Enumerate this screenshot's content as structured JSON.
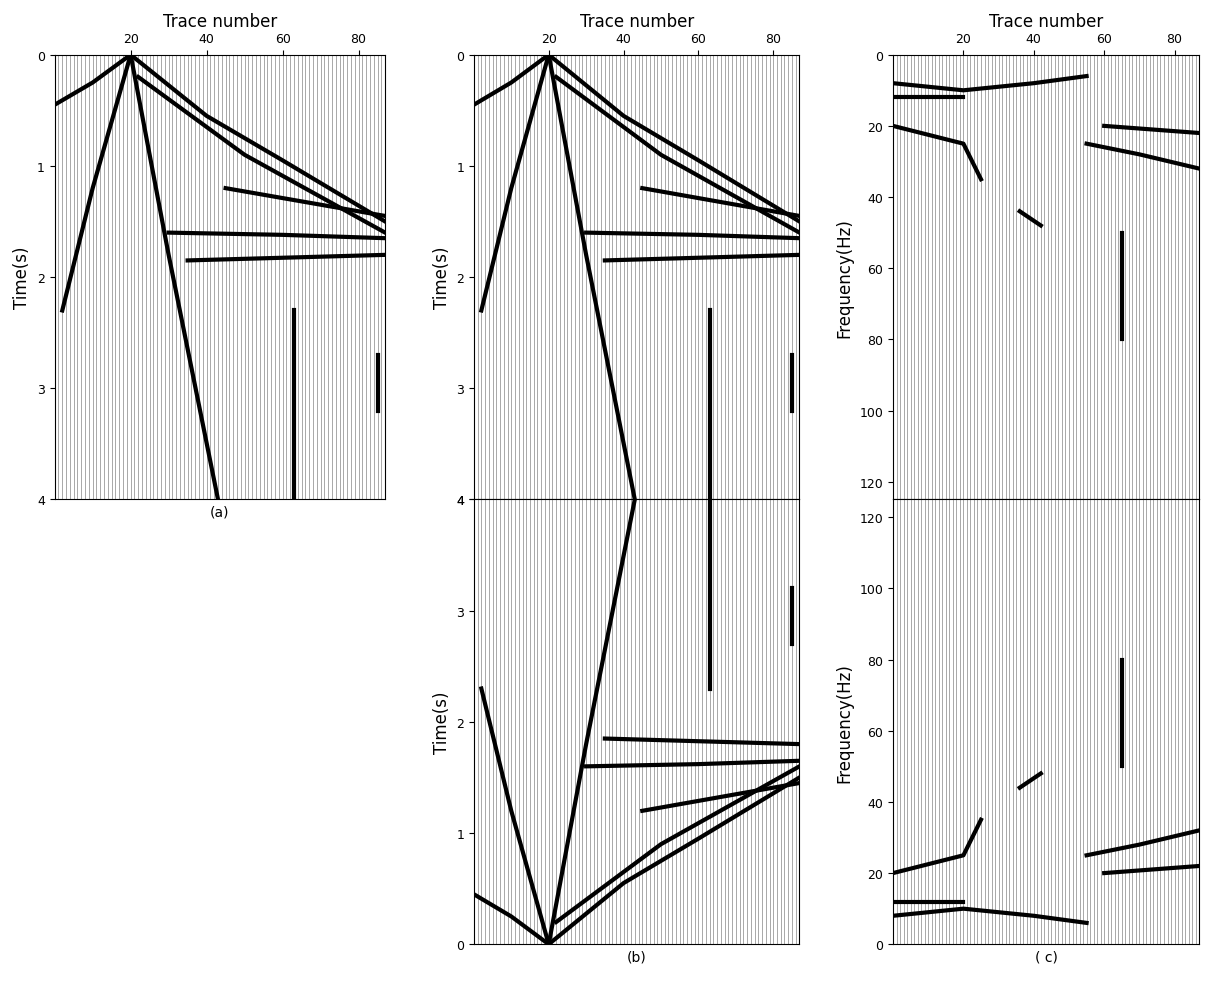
{
  "chart_data": [
    {
      "type": "line",
      "title": "(a)",
      "xlabel": "Trace number",
      "ylabel": "Time(s)",
      "xlim": [
        0,
        87
      ],
      "xticks": [
        20,
        40,
        60,
        80
      ],
      "ylim": [
        4,
        0
      ],
      "yticks": [
        0,
        1,
        2,
        3,
        4
      ],
      "traces": 87,
      "series": [
        {
          "x": [
            20,
            10,
            0
          ],
          "y": [
            0,
            0.25,
            0.45
          ],
          "color": "#000000"
        },
        {
          "x": [
            20,
            40,
            60,
            87
          ],
          "y": [
            0,
            0.55,
            0.95,
            1.5
          ],
          "color": "#000000"
        },
        {
          "x": [
            22,
            50,
            87
          ],
          "y": [
            0.2,
            0.9,
            1.6
          ],
          "color": "#000000"
        },
        {
          "x": [
            20,
            30,
            43
          ],
          "y": [
            0,
            1.8,
            4
          ],
          "color": "#000000"
        },
        {
          "x": [
            20,
            10,
            2
          ],
          "y": [
            0,
            1.2,
            2.3
          ],
          "color": "#000000"
        },
        {
          "x": [
            30,
            60,
            87
          ],
          "y": [
            1.6,
            1.62,
            1.65
          ],
          "color": "#000000"
        },
        {
          "x": [
            35,
            87
          ],
          "y": [
            1.85,
            1.8
          ],
          "color": "#000000"
        },
        {
          "x": [
            45,
            87
          ],
          "y": [
            1.2,
            1.45
          ],
          "color": "#000000"
        },
        {
          "x": [
            63,
            63
          ],
          "y": [
            2.3,
            4
          ],
          "color": "#000000"
        },
        {
          "x": [
            85,
            85
          ],
          "y": [
            2.7,
            3.2
          ],
          "color": "#000000"
        }
      ]
    },
    {
      "type": "line",
      "xlabel": "Trace number",
      "ylabel": "Time(s)",
      "xlim": [
        0,
        87
      ],
      "xticks": [
        20,
        40,
        60,
        80
      ],
      "ylim": [
        4,
        0
      ],
      "yticks": [
        0,
        1,
        2,
        3,
        4
      ],
      "traces": 87,
      "series": [
        {
          "x": [
            20,
            10,
            0
          ],
          "y": [
            0,
            0.25,
            0.45
          ],
          "color": "#000000"
        },
        {
          "x": [
            20,
            40,
            60,
            87
          ],
          "y": [
            0,
            0.55,
            0.95,
            1.5
          ],
          "color": "#000000"
        },
        {
          "x": [
            22,
            50,
            87
          ],
          "y": [
            0.2,
            0.9,
            1.6
          ],
          "color": "#000000"
        },
        {
          "x": [
            20,
            30,
            43
          ],
          "y": [
            0,
            1.8,
            4
          ],
          "color": "#000000"
        },
        {
          "x": [
            20,
            10,
            2
          ],
          "y": [
            0,
            1.2,
            2.3
          ],
          "color": "#000000"
        },
        {
          "x": [
            30,
            60,
            87
          ],
          "y": [
            1.6,
            1.62,
            1.65
          ],
          "color": "#000000"
        },
        {
          "x": [
            35,
            87
          ],
          "y": [
            1.85,
            1.8
          ],
          "color": "#000000"
        },
        {
          "x": [
            45,
            87
          ],
          "y": [
            1.2,
            1.45
          ],
          "color": "#000000"
        },
        {
          "x": [
            63,
            63
          ],
          "y": [
            2.3,
            4
          ],
          "color": "#000000"
        },
        {
          "x": [
            85,
            85
          ],
          "y": [
            2.7,
            3.2
          ],
          "color": "#000000"
        }
      ]
    },
    {
      "type": "line",
      "title": "(b)",
      "ylabel": "Time(s)",
      "tick_labels": "y",
      "xlim": [
        0,
        87
      ],
      "ylim": [
        0,
        4
      ],
      "yticks": [
        4,
        3,
        2,
        1,
        0
      ],
      "traces": 87,
      "series": [
        {
          "x": [
            20,
            10,
            0
          ],
          "y": [
            0,
            0.25,
            0.45
          ],
          "color": "#000000"
        },
        {
          "x": [
            20,
            40,
            60,
            87
          ],
          "y": [
            0,
            0.55,
            0.95,
            1.5
          ],
          "color": "#000000"
        },
        {
          "x": [
            22,
            50,
            87
          ],
          "y": [
            0.2,
            0.9,
            1.6
          ],
          "color": "#000000"
        },
        {
          "x": [
            20,
            30,
            43
          ],
          "y": [
            0,
            1.8,
            4
          ],
          "color": "#000000"
        },
        {
          "x": [
            20,
            10,
            2
          ],
          "y": [
            0,
            1.2,
            2.3
          ],
          "color": "#000000"
        },
        {
          "x": [
            30,
            60,
            87
          ],
          "y": [
            1.6,
            1.62,
            1.65
          ],
          "color": "#000000"
        },
        {
          "x": [
            35,
            87
          ],
          "y": [
            1.85,
            1.8
          ],
          "color": "#000000"
        },
        {
          "x": [
            45,
            87
          ],
          "y": [
            1.2,
            1.45
          ],
          "color": "#000000"
        },
        {
          "x": [
            63,
            63
          ],
          "y": [
            2.3,
            4
          ],
          "color": "#000000"
        },
        {
          "x": [
            85,
            85
          ],
          "y": [
            2.7,
            3.2
          ],
          "color": "#000000"
        }
      ]
    },
    {
      "type": "line",
      "xlabel": "Trace number",
      "ylabel": "Frequency(Hz)",
      "xlim": [
        0,
        87
      ],
      "xticks": [
        20,
        40,
        60,
        80
      ],
      "ylim": [
        125,
        0
      ],
      "yticks": [
        0,
        20,
        40,
        60,
        80,
        100,
        120
      ],
      "traces": 87,
      "series": [
        {
          "x": [
            0,
            20,
            40,
            55
          ],
          "y": [
            8,
            10,
            8,
            6
          ],
          "color": "#000000"
        },
        {
          "x": [
            0,
            20
          ],
          "y": [
            12,
            12
          ],
          "color": "#000000"
        },
        {
          "x": [
            55,
            70,
            87
          ],
          "y": [
            25,
            28,
            32
          ],
          "color": "#000000"
        },
        {
          "x": [
            60,
            87
          ],
          "y": [
            20,
            22
          ],
          "color": "#000000"
        },
        {
          "x": [
            36,
            42
          ],
          "y": [
            44,
            48
          ],
          "color": "#000000"
        },
        {
          "x": [
            0,
            20,
            25
          ],
          "y": [
            20,
            25,
            35
          ],
          "color": "#000000"
        },
        {
          "x": [
            65,
            65
          ],
          "y": [
            50,
            80
          ],
          "color": "#000000"
        }
      ]
    },
    {
      "type": "line",
      "title": "( c)",
      "ylabel": "Frequency(Hz)",
      "tick_labels": "y",
      "xlim": [
        0,
        87
      ],
      "ylim": [
        0,
        125
      ],
      "yticks": [
        120,
        100,
        80,
        60,
        40,
        20,
        0
      ],
      "traces": 87,
      "series": [
        {
          "x": [
            0,
            20,
            40,
            55
          ],
          "y": [
            8,
            10,
            8,
            6
          ],
          "color": "#000000"
        },
        {
          "x": [
            0,
            20
          ],
          "y": [
            12,
            12
          ],
          "color": "#000000"
        },
        {
          "x": [
            55,
            70,
            87
          ],
          "y": [
            25,
            28,
            32
          ],
          "color": "#000000"
        },
        {
          "x": [
            60,
            87
          ],
          "y": [
            20,
            22
          ],
          "color": "#000000"
        },
        {
          "x": [
            36,
            42
          ],
          "y": [
            44,
            48
          ],
          "color": "#000000"
        },
        {
          "x": [
            0,
            20,
            25
          ],
          "y": [
            20,
            25,
            35
          ],
          "color": "#000000"
        },
        {
          "x": [
            65,
            65
          ],
          "y": [
            50,
            80
          ],
          "color": "#000000"
        }
      ]
    }
  ]
}
